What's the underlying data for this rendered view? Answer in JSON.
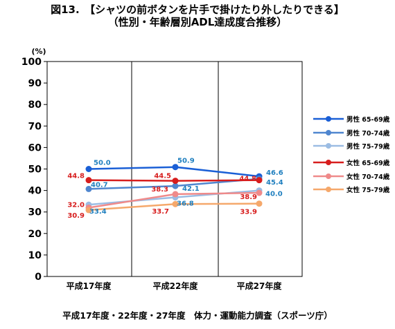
{
  "title": "図13.　【シャツの前ボタンを片手で掛けたり外したりできる】",
  "subtitle": "（性別・年齢層別ADL達成度合推移）",
  "footer": "平成17年度・22年度・27年度　体力・運動能力調査（スポーツ庁）",
  "chart_data": {
    "type": "line",
    "categories": [
      "平成17年度",
      "平成22年度",
      "平成27年度"
    ],
    "ylabel": "(%)",
    "ylim": [
      0,
      100
    ],
    "yticks": [
      0,
      10,
      20,
      30,
      40,
      50,
      60,
      70,
      80,
      90,
      100
    ],
    "grid": "vertical",
    "legend": "right",
    "series": [
      {
        "name": "男性 65-69歳",
        "values": [
          50.0,
          50.9,
          46.6
        ],
        "color": "#1a5fd6",
        "label_color": "#1f7fbf",
        "labels": [
          "50.0",
          "50.9",
          "46.6"
        ]
      },
      {
        "name": "男性 70-74歳",
        "values": [
          40.7,
          42.1,
          45.4
        ],
        "color": "#4f86cf",
        "label_color": "#1f7fbf",
        "labels": [
          "40.7",
          "42.1",
          "45.4"
        ]
      },
      {
        "name": "男性 75-79歳",
        "values": [
          33.4,
          36.8,
          40.0
        ],
        "color": "#9bbce3",
        "label_color": "#1f7fbf",
        "labels": [
          "33.4",
          "36.8",
          "40.0"
        ]
      },
      {
        "name": "女性 65-69歳",
        "values": [
          44.8,
          44.5,
          44.8
        ],
        "color": "#d71d1d",
        "label_color": "#d71d1d",
        "labels": [
          "44.8",
          "44.5",
          "44.8"
        ]
      },
      {
        "name": "女性 70-74歳",
        "values": [
          32.0,
          38.3,
          38.9
        ],
        "color": "#ef8a8a",
        "label_color": "#d71d1d",
        "labels": [
          "32.0",
          "38.3",
          "38.9"
        ]
      },
      {
        "name": "女性 75-79歳",
        "values": [
          30.9,
          33.7,
          33.9
        ],
        "color": "#f5a86b",
        "label_color": "#d71d1d",
        "labels": [
          "30.9",
          "33.7",
          "33.9"
        ]
      }
    ]
  }
}
